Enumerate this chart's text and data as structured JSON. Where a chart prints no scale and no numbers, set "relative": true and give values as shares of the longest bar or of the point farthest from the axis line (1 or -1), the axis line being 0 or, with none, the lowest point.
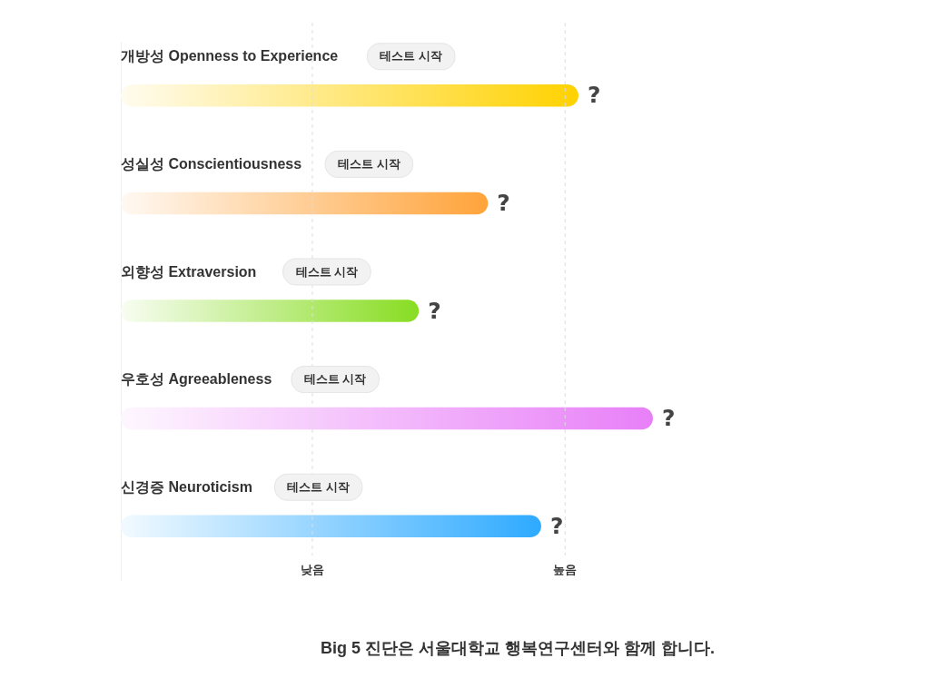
{
  "chart_data": {
    "type": "bar",
    "orientation": "horizontal",
    "relative": true,
    "tick_labels": "y",
    "categories": [
      "개방성 Openness to Experience",
      "성실성 Conscientiousness",
      "외향성 Extraversion",
      "우호성 Agreeableness",
      "신경증 Neuroticism"
    ],
    "values": [
      0.86,
      0.69,
      0.56,
      1,
      0.79
    ],
    "colors": [
      "#ffd200",
      "#ffa33a",
      "#88dd22",
      "#e87ff8",
      "#2eaaff"
    ],
    "ref_lines": [
      {
        "axis": "x",
        "value": 0.36,
        "label": "낮음",
        "color": "#dddddd",
        "line_style": "dashed"
      },
      {
        "axis": "x",
        "value": 0.835,
        "label": "높음",
        "color": "#dddddd",
        "line_style": "dashed"
      }
    ],
    "annotations": [
      "?",
      "?",
      "?",
      "?",
      "?",
      "테스트 시작",
      "테스트 시작",
      "테스트 시작",
      "테스트 시작",
      "테스트 시작",
      "Big 5 진단은 서울대학교 행복연구센터와 함께 합니다."
    ]
  }
}
